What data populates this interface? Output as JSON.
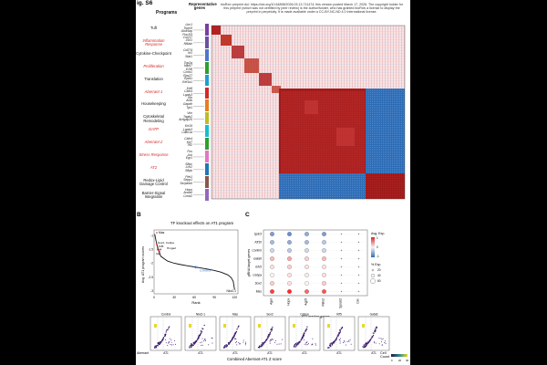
{
  "figure": {
    "label": "ig. S6",
    "panel_a": {
      "col_programs": "Programs",
      "col_genes": "Representative genes",
      "zscore_label": "Z-Score",
      "zscore_ticks": [
        "-1",
        "0",
        "1"
      ],
      "preprint_notice": "bioRxiv preprint doi: https://doi.org/10.64898/2026.03.13.711474; this version posted March 17, 2026. The copyright holder for this preprint (which was not certified by peer review) is the author/funder, who has granted bioRxiv a license to display the preprint in perpetuity. It is made available under a CC-BY-NC-ND 4.0 International license.",
      "programs": [
        {
          "name": "Tuft",
          "color": "#111111",
          "genes": "Ltrc1\nTrpm5\nAlox5ap\nPou2f3",
          "band": "#7b3fa0"
        },
        {
          "name": "Inflammation Response",
          "color": "#d62728",
          "genes": "Cxcl17\nIl1rl1\nNfkbiz",
          "band": "#6a51a3"
        },
        {
          "name": "Cytokine-Checkpoint",
          "color": "#111111",
          "genes": "Cd274\nIrf1\nStat1",
          "band": "#4c78c8"
        },
        {
          "name": "Proliferation",
          "color": "#d62728",
          "genes": "Top2a\nMki67\nE2f8\nCcnb1",
          "band": "#2ca02c"
        },
        {
          "name": "Translation",
          "color": "#111111",
          "genes": "Rps27\nRpl41\nEef1a1",
          "band": "#1f9fd1"
        },
        {
          "name": "Aberrant-1",
          "color": "#d62728",
          "genes": "Krt8\nCldn4\nLgals3\nSfn",
          "band": "#d62728"
        },
        {
          "name": "Housekeeping",
          "color": "#111111",
          "genes": "Actb\nGapdh\nTpt1",
          "band": "#e67e22"
        },
        {
          "name": "Cytoskeletal Remodeling",
          "color": "#111111",
          "genes": "Vim\nTagln2\nArhgap26",
          "band": "#bcbd22"
        },
        {
          "name": "DATP",
          "color": "#d62728",
          "genes": "Krt19\nLgals3\nCdkn1a",
          "band": "#17becf"
        },
        {
          "name": "Aberrant-2",
          "color": "#d62728",
          "genes": "Cldn4\nKrt7\nTff2",
          "band": "#2ca02c"
        },
        {
          "name": "Stress Response",
          "color": "#d62728",
          "genes": "Fos\nJun\nEgr1",
          "band": "#e377c2"
        },
        {
          "name": "AT2",
          "color": "#d62728",
          "genes": "Sftpc\nLcn2\nSftpb",
          "band": "#1f77b4"
        },
        {
          "name": "Redox-Lipid Damage Control",
          "color": "#111111",
          "genes": "Plet1\nSepp1\nSerpinb6",
          "band": "#8c564b"
        },
        {
          "name": "Barrier-Signal Integration",
          "color": "#111111",
          "genes": "Hopx\nAnxa6\nCcnd2",
          "band": "#9467bd"
        }
      ]
    },
    "panel_b": {
      "label": "B",
      "title": "TF knockout effects on AT1 program",
      "xlabel": "Rank",
      "ylabel": "Avg. AT1 program scores",
      "control_label": "Control",
      "top_labels": [
        "Mas",
        "Sox2",
        "Cebpa",
        "Klf5",
        "Klf4",
        "Hmga2",
        "Id2"
      ],
      "bottom_label": "Nkx2-1",
      "x_ticks": [
        "0",
        "30",
        "60",
        "90",
        "120"
      ],
      "y_ticks": [
        "-1",
        "-1.5",
        "-2",
        "-2.5",
        "-3"
      ]
    },
    "panel_c": {
      "label": "C",
      "ylabel": "gRNA target genes",
      "xlabel": "AT1 marker genes",
      "legend_title_color": "Avg. Exp.",
      "legend_color_ticks": [
        "1",
        "0",
        "-1"
      ],
      "legend_title_size": "% Exp.",
      "legend_size_ticks": [
        "20",
        "40",
        "60"
      ]
    },
    "panel_d": {
      "xlabel": "Combined Aberrant-AT1 Z score",
      "cell_count_label": "Cell Count",
      "cell_count_ticks": [
        "0",
        "20",
        "40"
      ],
      "subplots": [
        "Control",
        "Nkx2-1",
        "Mas",
        "Sox2",
        "Cebpa",
        "Klf5",
        "Gata6"
      ],
      "axis_label": "AT1",
      "row_label": "Aberrant"
    }
  },
  "chart_data": [
    {
      "type": "heatmap",
      "title": "",
      "legend": "Z-Score",
      "value_range": [
        -1,
        1
      ],
      "row_groups": [
        "Tuft",
        "Inflammation Response",
        "Cytokine-Checkpoint",
        "Proliferation",
        "Translation",
        "Aberrant-1",
        "Housekeeping",
        "Cytoskeletal Remodeling",
        "DATP",
        "Aberrant-2",
        "Stress Response",
        "AT2",
        "Redox-Lipid Damage Control",
        "Barrier-Signal Integration"
      ]
    },
    {
      "type": "line",
      "title": "TF knockout effects on AT1 program",
      "xlabel": "Rank",
      "ylabel": "Avg. AT1 program scores",
      "xlim": [
        0,
        125
      ],
      "ylim": [
        -3.1,
        -0.8
      ],
      "x": [
        1,
        3,
        6,
        10,
        20,
        30,
        40,
        50,
        60,
        70,
        80,
        90,
        100,
        110,
        115,
        118,
        120
      ],
      "y": [
        -0.95,
        -1.2,
        -1.5,
        -1.75,
        -1.92,
        -2.0,
        -2.05,
        -2.09,
        -2.13,
        -2.17,
        -2.21,
        -2.26,
        -2.32,
        -2.42,
        -2.52,
        -2.65,
        -2.95
      ]
    },
    {
      "type": "scatter",
      "title": "",
      "xlabel": "AT1 marker genes",
      "ylabel": "gRNA target genes",
      "x_categories": [
        "Ager",
        "Hopx",
        "Aqp5",
        "Rtkn2",
        "Spock2",
        "Cav"
      ],
      "y_categories": [
        "Sp1l3",
        "Klf10",
        "Control",
        "Gata6",
        "Etv5",
        "Cebpa",
        "Sox2",
        "Mas"
      ],
      "values": [
        [
          -0.6,
          -0.7,
          -0.5,
          -0.6,
          0,
          0.1
        ],
        [
          -0.4,
          -0.5,
          -0.4,
          -0.3,
          0,
          0
        ],
        [
          -0.2,
          -0.3,
          -0.2,
          -0.2,
          0,
          0
        ],
        [
          0.3,
          0.4,
          0.2,
          0.3,
          0,
          0
        ],
        [
          0.1,
          0.2,
          0.1,
          0.1,
          0,
          0
        ],
        [
          0,
          0.1,
          0.05,
          0.1,
          0,
          0
        ],
        [
          0.2,
          0.1,
          0,
          0.2,
          0,
          0
        ],
        [
          0.9,
          1.0,
          0.7,
          0.8,
          0,
          0
        ]
      ]
    }
  ]
}
